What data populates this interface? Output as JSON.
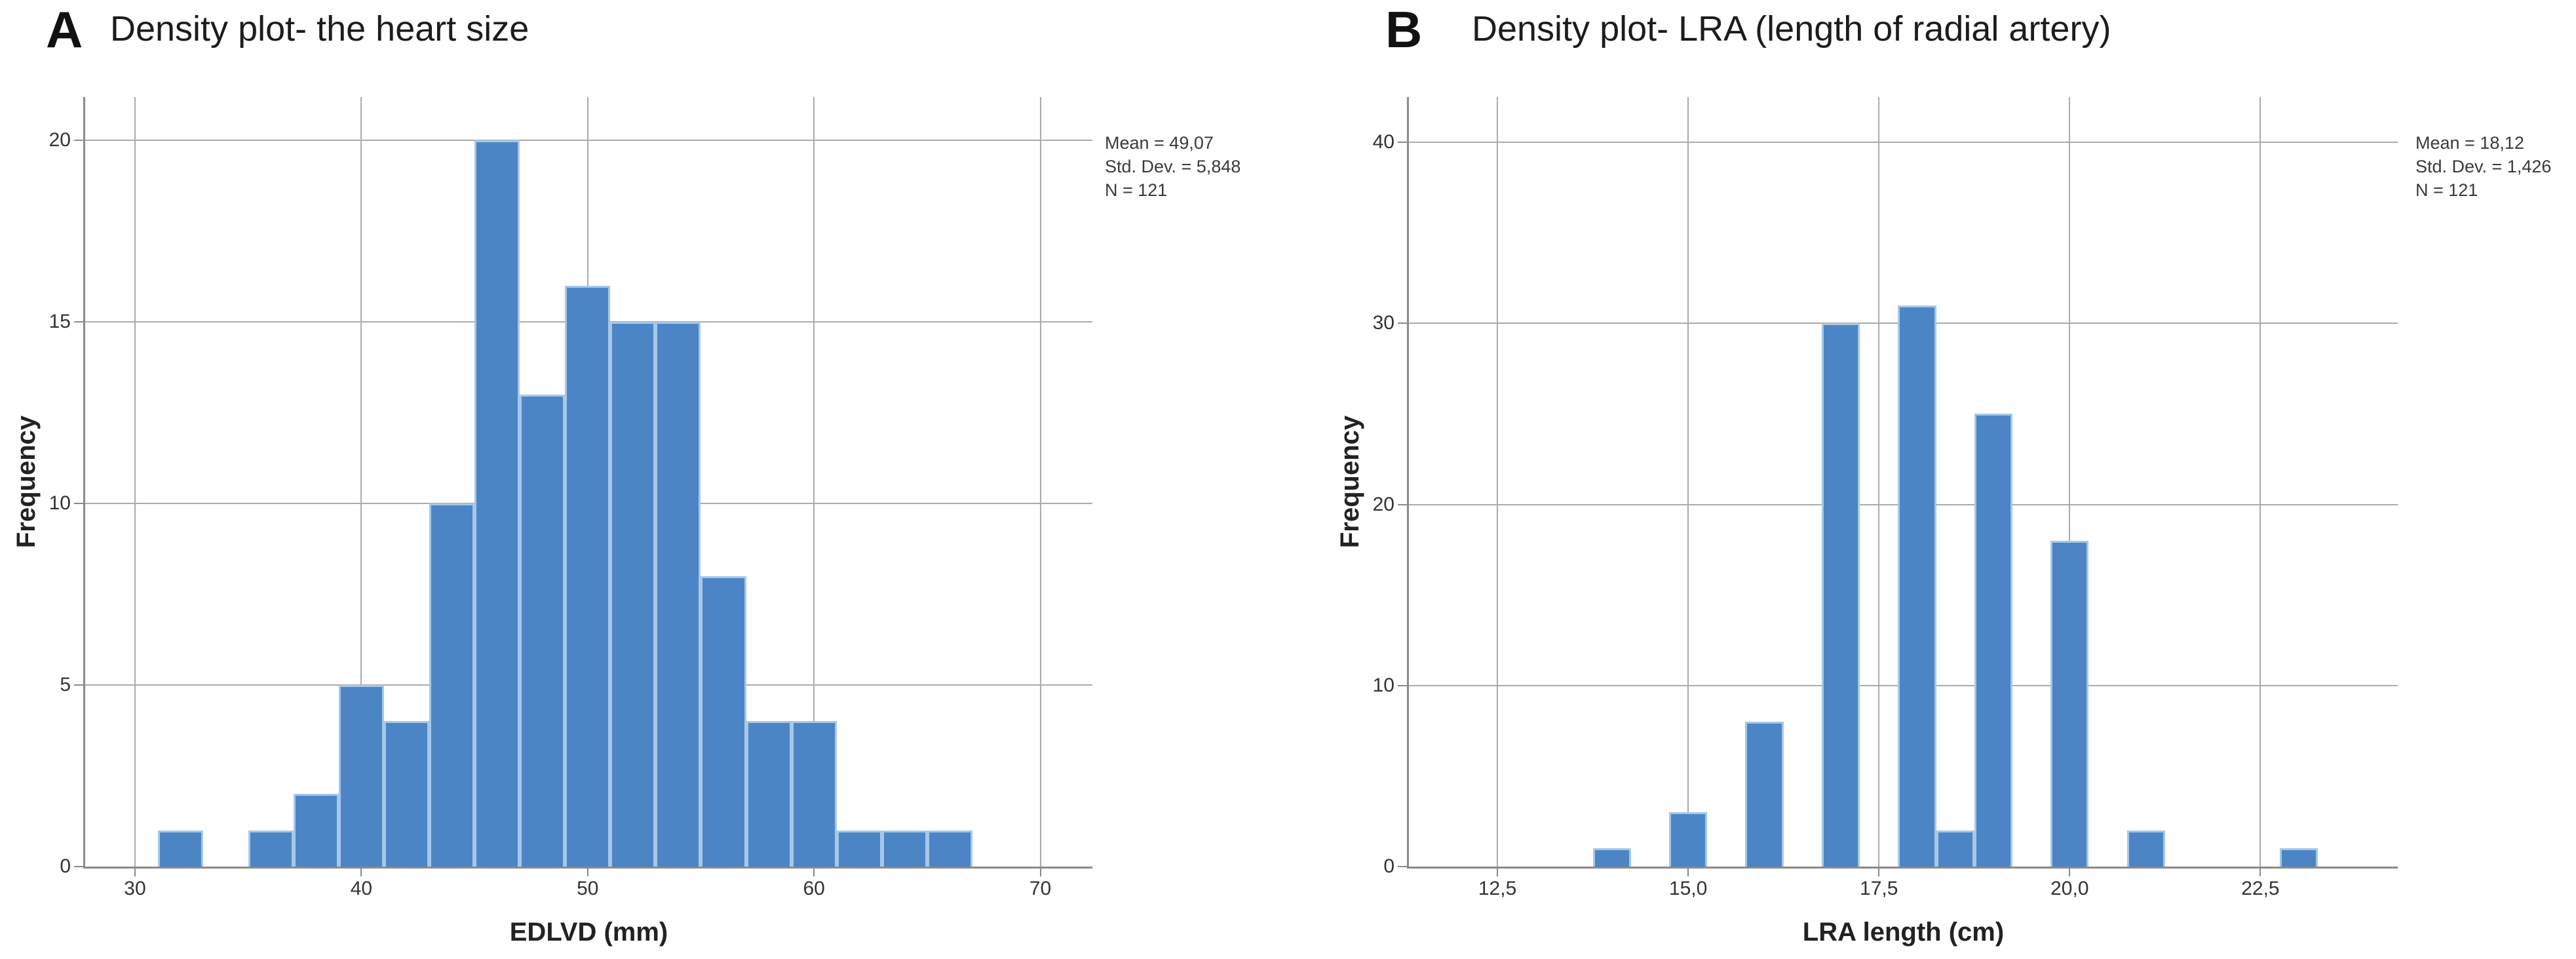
{
  "figure": {
    "background": "#ffffff",
    "bar_fill": "#4b85c5",
    "bar_border": "#a6c8e8",
    "gridline_color": "#ababab",
    "axis_color": "#8a8a8a",
    "text_color": "#2a2a2a"
  },
  "chart_data": [
    {
      "type": "bar",
      "subtype": "histogram",
      "panel_letter": "A",
      "title": "Density plot- the heart size",
      "xlabel": "EDLVD (mm)",
      "ylabel": "Frequency",
      "annotation_lines": [
        "Mean = 49,07",
        "Std. Dev. = 5,848",
        "N = 121"
      ],
      "legend": "none",
      "grid": true,
      "bin_width": 2,
      "bins": [
        {
          "x_start": 31,
          "count": 1
        },
        {
          "x_start": 33,
          "count": 0
        },
        {
          "x_start": 35,
          "count": 1
        },
        {
          "x_start": 37,
          "count": 2
        },
        {
          "x_start": 39,
          "count": 5
        },
        {
          "x_start": 41,
          "count": 4
        },
        {
          "x_start": 43,
          "count": 10
        },
        {
          "x_start": 45,
          "count": 20
        },
        {
          "x_start": 47,
          "count": 13
        },
        {
          "x_start": 49,
          "count": 16
        },
        {
          "x_start": 51,
          "count": 15
        },
        {
          "x_start": 53,
          "count": 15
        },
        {
          "x_start": 55,
          "count": 8
        },
        {
          "x_start": 57,
          "count": 4
        },
        {
          "x_start": 59,
          "count": 4
        },
        {
          "x_start": 61,
          "count": 1
        },
        {
          "x_start": 63,
          "count": 1
        },
        {
          "x_start": 65,
          "count": 1
        }
      ],
      "x_ticks": [
        {
          "value": 30,
          "label": "30"
        },
        {
          "value": 40,
          "label": "40"
        },
        {
          "value": 50,
          "label": "50"
        },
        {
          "value": 60,
          "label": "60"
        },
        {
          "value": 70,
          "label": "70"
        }
      ],
      "y_ticks": [
        {
          "value": 0,
          "label": "0"
        },
        {
          "value": 5,
          "label": "5"
        },
        {
          "value": 10,
          "label": "10"
        },
        {
          "value": 15,
          "label": "15"
        },
        {
          "value": 20,
          "label": "20"
        }
      ],
      "xlim": [
        27.8,
        72.3
      ],
      "ylim": [
        0,
        21.2
      ]
    },
    {
      "type": "bar",
      "subtype": "histogram",
      "panel_letter": "B",
      "title": "Density plot- LRA (length of radial artery)",
      "xlabel": "LRA length (cm)",
      "ylabel": "Frequency",
      "annotation_lines": [
        "Mean = 18,12",
        "Std. Dev. = 1,426",
        "N = 121"
      ],
      "legend": "none",
      "grid": true,
      "bin_width": 0.5,
      "bins": [
        {
          "x_start": 13.75,
          "count": 1
        },
        {
          "x_start": 14.75,
          "count": 3
        },
        {
          "x_start": 15.75,
          "count": 8
        },
        {
          "x_start": 16.75,
          "count": 30
        },
        {
          "x_start": 17.75,
          "count": 31
        },
        {
          "x_start": 18.25,
          "count": 2
        },
        {
          "x_start": 18.75,
          "count": 25
        },
        {
          "x_start": 19.75,
          "count": 18
        },
        {
          "x_start": 20.75,
          "count": 2
        },
        {
          "x_start": 22.75,
          "count": 1
        }
      ],
      "x_ticks": [
        {
          "value": 12.5,
          "label": "12,5"
        },
        {
          "value": 15.0,
          "label": "15,0"
        },
        {
          "value": 17.5,
          "label": "17,5"
        },
        {
          "value": 20.0,
          "label": "20,0"
        },
        {
          "value": 22.5,
          "label": "22,5"
        }
      ],
      "y_ticks": [
        {
          "value": 0,
          "label": "0"
        },
        {
          "value": 10,
          "label": "10"
        },
        {
          "value": 20,
          "label": "20"
        },
        {
          "value": 30,
          "label": "30"
        },
        {
          "value": 40,
          "label": "40"
        }
      ],
      "xlim": [
        11.34,
        24.3
      ],
      "ylim": [
        0,
        42.5
      ]
    }
  ]
}
